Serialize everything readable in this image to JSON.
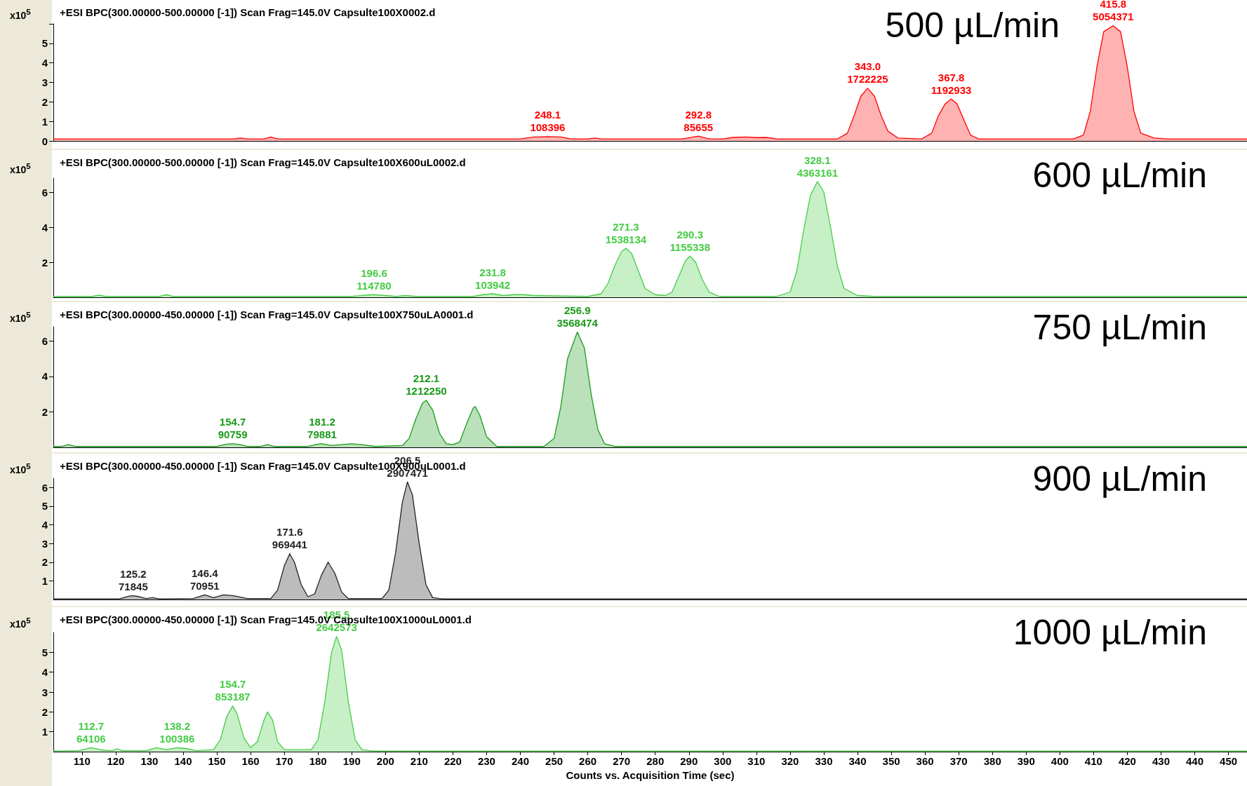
{
  "chart_data": [
    {
      "type": "area",
      "title": "+ESI BPC(300.00000-500.00000 [-1]) Scan Frag=145.0V Capsulte100X0002.d",
      "subtitle": "500 µL/min",
      "ylabel": "x10$^{5}$",
      "xlim": [
        101.5,
        455.5
      ],
      "ylim": [
        0,
        6
      ],
      "yticks": [
        0,
        1,
        2,
        3,
        4,
        5,
        {
          "value": 6,
          "label": null
        }
      ],
      "tick_labels": "y",
      "marker": "none",
      "line_style": "solid",
      "series": [
        {
          "color": "#ff0000",
          "x": [
            101.5,
            155,
            157,
            159,
            164,
            166,
            168,
            240,
            244,
            248.1,
            252,
            255,
            260,
            262,
            264,
            288,
            292.8,
            296,
            300,
            303,
            307,
            310,
            313,
            316,
            334,
            337,
            339,
            341,
            343,
            345,
            347,
            349,
            352,
            359,
            362,
            364,
            366,
            367.8,
            369.5,
            371.5,
            373.5,
            376,
            404,
            407,
            409,
            411,
            413,
            415.8,
            418,
            420,
            422,
            424,
            428,
            432,
            455.5
          ],
          "values": [
            0.1,
            0.1,
            0.15,
            0.1,
            0.1,
            0.2,
            0.1,
            0.1,
            0.2,
            0.22,
            0.2,
            0.1,
            0.1,
            0.15,
            0.1,
            0.1,
            0.25,
            0.1,
            0.1,
            0.18,
            0.2,
            0.17,
            0.18,
            0.1,
            0.1,
            0.4,
            1.3,
            2.3,
            2.7,
            2.3,
            1.3,
            0.5,
            0.15,
            0.1,
            0.4,
            1.3,
            1.9,
            2.15,
            1.9,
            1.1,
            0.3,
            0.1,
            0.1,
            0.3,
            1.5,
            3.8,
            5.6,
            5.9,
            5.6,
            3.8,
            1.5,
            0.4,
            0.15,
            0.1,
            0.1
          ]
        }
      ],
      "annotations": [
        {
          "text": "248.1\n108396",
          "x": 248.1,
          "y": 0.22
        },
        {
          "text": "292.8\n85655",
          "x": 292.8,
          "y": 0.25
        },
        {
          "text": "343.0\n1722225",
          "x": 343,
          "y": 2.7
        },
        {
          "text": "367.8\n1192933",
          "x": 367.8,
          "y": 2.15
        },
        {
          "text": "415.8\n5054371",
          "x": 415.8,
          "y": 5.9
        }
      ]
    },
    {
      "type": "area",
      "title": "+ESI BPC(300.00000-500.00000 [-1]) Scan Frag=145.0V Capsulte100X600uL0002.d",
      "subtitle": "600 µL/min",
      "ylabel": "x10$^{5}$",
      "xlim": [
        101.5,
        455.5
      ],
      "ylim": [
        0,
        6.8
      ],
      "yticks": [
        2,
        4,
        6
      ],
      "tick_labels": "y",
      "marker": "none",
      "line_style": "solid",
      "series": [
        {
          "color": "#44cc44",
          "x": [
            101.5,
            113,
            115,
            117,
            133,
            135,
            137,
            190,
            194,
            196.6,
            200,
            203,
            206,
            209,
            226,
            229,
            231.8,
            235,
            238,
            241,
            244,
            250,
            260,
            264,
            266,
            268,
            270,
            271.3,
            273,
            275,
            277,
            280,
            283,
            285,
            287,
            289,
            290.3,
            292,
            294,
            296,
            299,
            316,
            320,
            322,
            324,
            326,
            328.1,
            330,
            332,
            334,
            336,
            340,
            345,
            455.5
          ],
          "values": [
            0.05,
            0.05,
            0.12,
            0.05,
            0.05,
            0.15,
            0.05,
            0.05,
            0.12,
            0.15,
            0.1,
            0.05,
            0.1,
            0.05,
            0.05,
            0.15,
            0.2,
            0.1,
            0.15,
            0.15,
            0.1,
            0.08,
            0.05,
            0.2,
            0.8,
            1.8,
            2.6,
            2.8,
            2.5,
            1.5,
            0.5,
            0.15,
            0.1,
            0.3,
            1.2,
            2.1,
            2.35,
            2.0,
            1.0,
            0.3,
            0.05,
            0.05,
            0.3,
            1.5,
            3.8,
            5.8,
            6.6,
            6.0,
            4.0,
            1.8,
            0.5,
            0.1,
            0.05,
            0.05
          ]
        }
      ],
      "annotations": [
        {
          "text": "196.6\n114780",
          "x": 196.6,
          "y": 0.15
        },
        {
          "text": "231.8\n103942",
          "x": 231.8,
          "y": 0.2
        },
        {
          "text": "271.3\n1538134",
          "x": 271.3,
          "y": 2.8
        },
        {
          "text": "290.3\n1155338",
          "x": 290.3,
          "y": 2.35
        },
        {
          "text": "328.1\n4363161",
          "x": 328.1,
          "y": 6.6
        }
      ]
    },
    {
      "type": "area",
      "title": "+ESI BPC(300.00000-450.00000 [-1]) Scan Frag=145.0V Capsulte100X750uLA0001.d",
      "subtitle": "750 µL/min",
      "ylabel": "x10$^{5}$",
      "xlim": [
        101.5,
        455.5
      ],
      "ylim": [
        0,
        6.8
      ],
      "yticks": [
        2,
        4,
        6
      ],
      "tick_labels": "y",
      "marker": "none",
      "line_style": "solid",
      "series": [
        {
          "color": "#1a9a1a",
          "x": [
            101.5,
            104,
            106,
            108,
            150,
            153,
            154.7,
            157,
            159,
            163,
            165,
            167,
            177,
            180,
            181.2,
            184,
            187,
            190,
            193,
            197,
            205,
            207,
            209,
            211,
            212.1,
            214,
            216,
            218,
            220,
            222,
            224,
            226,
            226.6,
            228,
            230,
            233,
            247,
            250,
            252,
            254,
            256.9,
            259,
            261,
            263,
            265,
            268,
            455.5
          ],
          "values": [
            0.05,
            0.05,
            0.15,
            0.05,
            0.05,
            0.18,
            0.2,
            0.15,
            0.05,
            0.05,
            0.15,
            0.05,
            0.05,
            0.18,
            0.2,
            0.1,
            0.15,
            0.2,
            0.15,
            0.05,
            0.1,
            0.5,
            1.6,
            2.5,
            2.65,
            2.1,
            0.8,
            0.2,
            0.15,
            0.3,
            1.3,
            2.2,
            2.3,
            1.8,
            0.6,
            0.05,
            0.05,
            0.5,
            2.3,
            5.0,
            6.5,
            5.6,
            3.0,
            1.0,
            0.2,
            0.05,
            0.05
          ]
        }
      ],
      "annotations": [
        {
          "text": "154.7\n90759",
          "x": 154.7,
          "y": 0.2
        },
        {
          "text": "181.2\n79881",
          "x": 181.2,
          "y": 0.2
        },
        {
          "text": "212.1\n1212250",
          "x": 212.1,
          "y": 2.65
        },
        {
          "text": "256.9\n3568474",
          "x": 256.9,
          "y": 6.5
        }
      ]
    },
    {
      "type": "area",
      "title": "+ESI BPC(300.00000-450.00000 [-1]) Scan Frag=145.0V Capsulte100X900uL0001.d",
      "subtitle": "900 µL/min",
      "ylabel": "x10$^{5}$",
      "xlim": [
        101.5,
        455.5
      ],
      "ylim": [
        0,
        6.5
      ],
      "yticks": [
        1,
        2,
        3,
        4,
        5,
        6
      ],
      "tick_labels": "y",
      "marker": "none",
      "line_style": "solid",
      "series": [
        {
          "color": "#222222",
          "x": [
            101.5,
            121,
            124,
            125.2,
            127,
            129,
            131,
            133,
            143,
            146.4,
            149,
            152,
            155,
            159,
            166,
            168,
            170,
            171.6,
            173,
            175,
            177,
            179,
            181,
            183,
            185,
            187,
            189,
            199,
            201,
            203,
            205,
            206.5,
            208,
            210,
            212,
            214,
            217,
            455.5
          ],
          "values": [
            0.03,
            0.03,
            0.18,
            0.2,
            0.15,
            0.05,
            0.1,
            0.03,
            0.05,
            0.25,
            0.1,
            0.25,
            0.2,
            0.05,
            0.05,
            0.5,
            1.8,
            2.45,
            2.0,
            0.8,
            0.15,
            0.3,
            1.3,
            2.0,
            1.4,
            0.4,
            0.05,
            0.05,
            0.5,
            2.5,
            5.2,
            6.3,
            5.6,
            3.0,
            0.8,
            0.1,
            0.03,
            0.03
          ]
        }
      ],
      "annotations": [
        {
          "text": "125.2\n71845",
          "x": 125.2,
          "y": 0.2
        },
        {
          "text": "146.4\n70951",
          "x": 146.4,
          "y": 0.25
        },
        {
          "text": "171.6\n969441",
          "x": 171.6,
          "y": 2.45
        },
        {
          "text": "206.5\n2907471",
          "x": 206.5,
          "y": 6.3
        }
      ]
    },
    {
      "type": "area",
      "title": "+ESI BPC(300.00000-450.00000 [-1]) Scan Frag=145.0V Capsulte100X1000uL0001.d",
      "subtitle": "1000 µL/min",
      "ylabel": "x10$^{5}$",
      "xlabel": "Counts vs. Acquisition Time (sec)",
      "xlim": [
        101.5,
        455.5
      ],
      "xticks": [
        110,
        120,
        130,
        140,
        150,
        160,
        170,
        180,
        190,
        200,
        210,
        220,
        230,
        240,
        250,
        260,
        270,
        280,
        290,
        300,
        310,
        320,
        330,
        340,
        350,
        360,
        370,
        380,
        390,
        400,
        410,
        420,
        430,
        440,
        450
      ],
      "ylim": [
        0,
        6
      ],
      "yticks": [
        1,
        2,
        3,
        4,
        5
      ],
      "marker": "none",
      "line_style": "solid",
      "series": [
        {
          "color": "#44cc44",
          "x": [
            101.5,
            109,
            112.7,
            116,
            119,
            120.5,
            122,
            129,
            132,
            135,
            138.2,
            141,
            144,
            149,
            151,
            153,
            154.7,
            156,
            158,
            160,
            162,
            164,
            165,
            166.5,
            168,
            170,
            178,
            180,
            182,
            184,
            185.5,
            187,
            189,
            191,
            193,
            196,
            455.5
          ],
          "values": [
            0.03,
            0.05,
            0.2,
            0.08,
            0.05,
            0.15,
            0.05,
            0.05,
            0.2,
            0.1,
            0.2,
            0.15,
            0.05,
            0.1,
            0.6,
            1.8,
            2.3,
            1.9,
            0.7,
            0.2,
            0.5,
            1.6,
            2.0,
            1.6,
            0.5,
            0.1,
            0.1,
            0.6,
            2.5,
            5.0,
            5.8,
            5.1,
            2.5,
            0.6,
            0.1,
            0.03,
            0.03
          ]
        }
      ],
      "annotations": [
        {
          "text": "112.7\n64106",
          "x": 112.7,
          "y": 0.2
        },
        {
          "text": "138.2\n100386",
          "x": 138.2,
          "y": 0.2
        },
        {
          "text": "154.7\n853187",
          "x": 154.7,
          "y": 2.3
        },
        {
          "text": "185.5\n2642573",
          "x": 185.5,
          "y": 5.8
        }
      ]
    }
  ]
}
